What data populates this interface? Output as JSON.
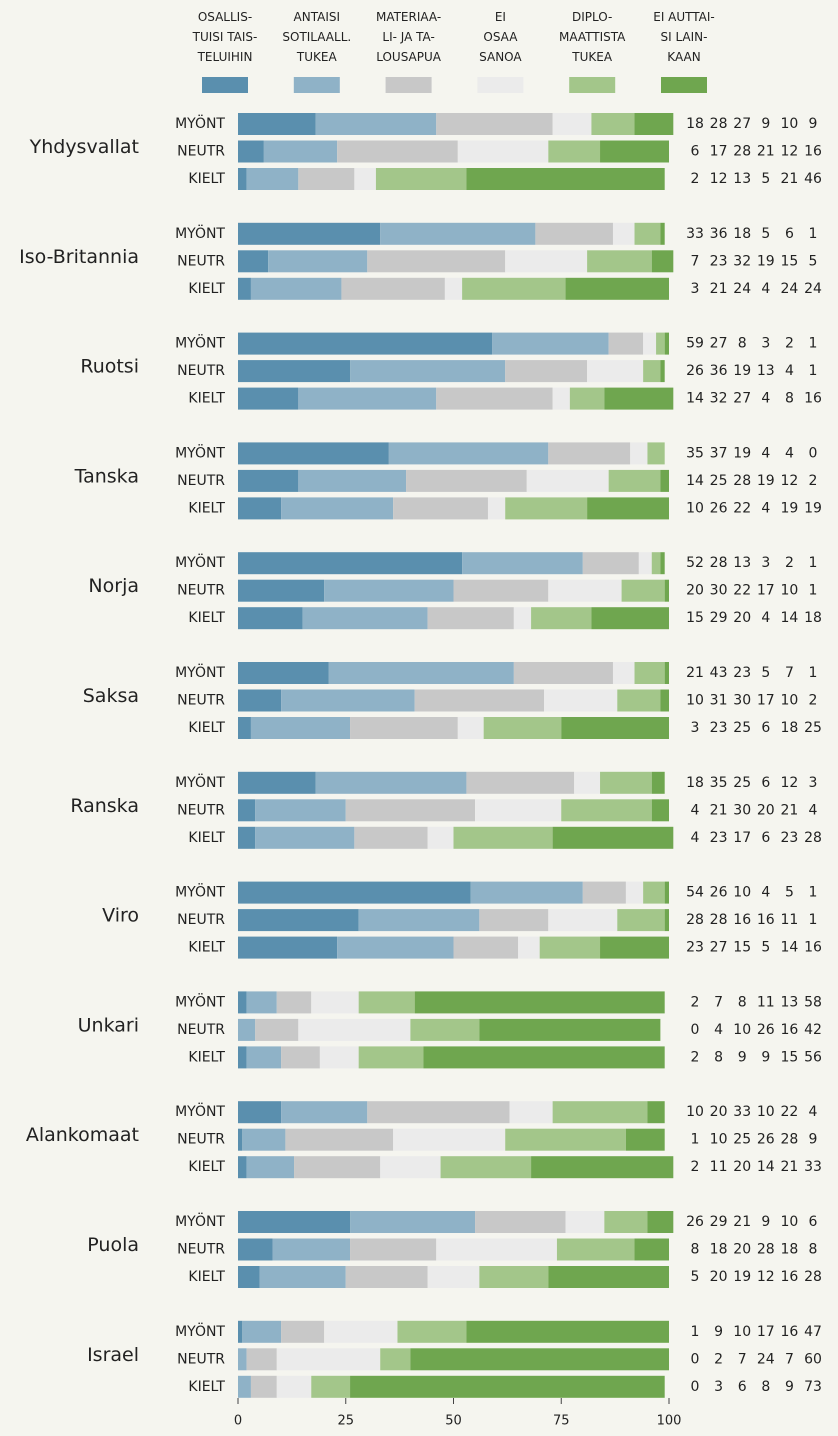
{
  "chart_data": {
    "type": "stacked-bar-horizontal",
    "groups": [
      "Yhdysvallat",
      "Iso-Britannia",
      "Ruotsi",
      "Tanska",
      "Norja",
      "Saksa",
      "Ranska",
      "Viro",
      "Unkari",
      "Alankomaat",
      "Puola",
      "Israel"
    ],
    "categories": [
      "MYÖNT",
      "NEUTR",
      "KIELT",
      "MYÖNT",
      "NEUTR",
      "KIELT",
      "MYÖNT",
      "NEUTR",
      "KIELT",
      "MYÖNT",
      "NEUTR",
      "KIELT",
      "MYÖNT",
      "NEUTR",
      "KIELT",
      "MYÖNT",
      "NEUTR",
      "KIELT",
      "MYÖNT",
      "NEUTR",
      "KIELT",
      "MYÖNT",
      "NEUTR",
      "KIELT",
      "MYÖNT",
      "NEUTR",
      "KIELT",
      "MYÖNT",
      "NEUTR",
      "KIELT",
      "MYÖNT",
      "NEUTR",
      "KIELT",
      "MYÖNT",
      "NEUTR",
      "KIELT"
    ],
    "series": [
      {
        "name": "OSALLIS-\nTUISI TAIS-\nTELUIHIN",
        "color": "#5a8fae",
        "values": [
          18,
          6,
          2,
          33,
          7,
          3,
          59,
          26,
          14,
          35,
          14,
          10,
          52,
          20,
          15,
          21,
          10,
          3,
          18,
          4,
          4,
          54,
          28,
          23,
          2,
          0,
          2,
          10,
          1,
          2,
          26,
          8,
          5,
          1,
          0,
          0
        ]
      },
      {
        "name": "ANTAISI\nSOTILAALL.\nTUKEA",
        "color": "#8fb2c7",
        "values": [
          28,
          17,
          12,
          36,
          23,
          21,
          27,
          36,
          32,
          37,
          25,
          26,
          28,
          30,
          29,
          43,
          31,
          23,
          35,
          21,
          23,
          26,
          28,
          27,
          7,
          4,
          8,
          20,
          10,
          11,
          29,
          18,
          20,
          9,
          2,
          3
        ]
      },
      {
        "name": "MATERIAA-\nLI- JA TA-\nLOUSAPUA",
        "color": "#c8c8c8",
        "values": [
          27,
          28,
          13,
          18,
          32,
          24,
          8,
          19,
          27,
          19,
          28,
          22,
          13,
          22,
          20,
          23,
          30,
          25,
          25,
          30,
          17,
          10,
          16,
          15,
          8,
          10,
          9,
          33,
          25,
          20,
          21,
          20,
          19,
          10,
          7,
          6
        ]
      },
      {
        "name": "EI\nOSAA\nSANOA",
        "color": "#ebebeb",
        "values": [
          9,
          21,
          5,
          5,
          19,
          4,
          3,
          13,
          4,
          4,
          19,
          4,
          3,
          17,
          4,
          5,
          17,
          6,
          6,
          20,
          6,
          4,
          16,
          5,
          11,
          26,
          9,
          10,
          26,
          14,
          9,
          28,
          12,
          17,
          24,
          8
        ]
      },
      {
        "name": "DIPLO-\nMAATTISTA\nTUKEA",
        "color": "#a3c68a",
        "values": [
          10,
          12,
          21,
          6,
          15,
          24,
          2,
          4,
          8,
          4,
          12,
          19,
          2,
          10,
          14,
          7,
          10,
          18,
          12,
          21,
          23,
          5,
          11,
          14,
          13,
          16,
          15,
          22,
          28,
          21,
          10,
          18,
          16,
          16,
          7,
          9
        ]
      },
      {
        "name": "EI AUTTAI-\nSI LAIN-\nKAAN",
        "color": "#6fa64f",
        "values": [
          9,
          16,
          46,
          1,
          5,
          24,
          1,
          1,
          16,
          0,
          2,
          19,
          1,
          1,
          18,
          1,
          2,
          25,
          3,
          4,
          28,
          1,
          1,
          16,
          58,
          42,
          56,
          4,
          9,
          33,
          6,
          8,
          28,
          47,
          60,
          73
        ]
      }
    ],
    "xlim": [
      0,
      100
    ],
    "xticks": [
      0,
      25,
      50,
      75,
      100
    ]
  }
}
